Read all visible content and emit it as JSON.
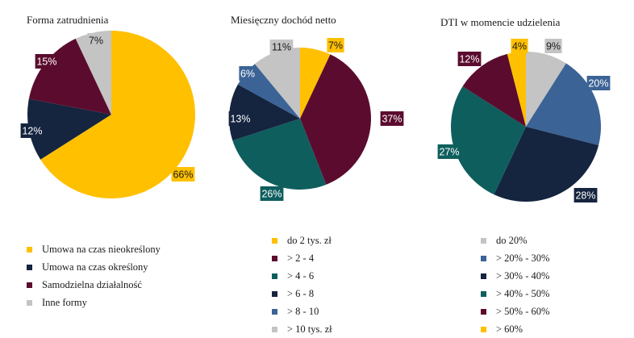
{
  "chart_data": [
    {
      "type": "pie",
      "title": "Forma zatrudnienia",
      "series": [
        {
          "label": "Umowa na czas nieokreślony",
          "value": 66,
          "display": "66%",
          "color": "#ffc000"
        },
        {
          "label": "Umowa na czas określony",
          "value": 12,
          "display": "12%",
          "color": "#15243f"
        },
        {
          "label": "Samodzielna działalność",
          "value": 15,
          "display": "15%",
          "color": "#5b0c2e"
        },
        {
          "label": "Inne formy",
          "value": 7,
          "display": "7%",
          "color": "#c4c4c4"
        }
      ]
    },
    {
      "type": "pie",
      "title": "Miesięczny dochód netto",
      "series": [
        {
          "label": "do 2 tys. zł",
          "value": 7,
          "display": "7%",
          "color": "#ffc000"
        },
        {
          "label": "> 2 - 4",
          "value": 37,
          "display": "37%",
          "color": "#5b0c2e"
        },
        {
          "label": "> 4 - 6",
          "value": 26,
          "display": "26%",
          "color": "#0f5e5e"
        },
        {
          "label": "> 6 - 8",
          "value": 13,
          "display": "13%",
          "color": "#15243f"
        },
        {
          "label": "> 8 - 10",
          "value": 6,
          "display": "6%",
          "color": "#3b6396"
        },
        {
          "label": "> 10 tys. zł",
          "value": 11,
          "display": "11%",
          "color": "#c4c4c4"
        }
      ]
    },
    {
      "type": "pie",
      "title": "DTI w momencie udzielenia",
      "series": [
        {
          "label": "do 20%",
          "value": 9,
          "display": "9%",
          "color": "#c4c4c4"
        },
        {
          "label": "> 20% - 30%",
          "value": 20,
          "display": "20%",
          "color": "#3b6396"
        },
        {
          "label": "> 30% - 40%",
          "value": 28,
          "display": "28%",
          "color": "#15243f"
        },
        {
          "label": "> 40% - 50%",
          "value": 27,
          "display": "27%",
          "color": "#0f5e5e"
        },
        {
          "label": "> 50% - 60%",
          "value": 12,
          "display": "12%",
          "color": "#5b0c2e"
        },
        {
          "label": "> 60%",
          "value": 4,
          "display": "4%",
          "color": "#ffc000"
        }
      ]
    }
  ]
}
